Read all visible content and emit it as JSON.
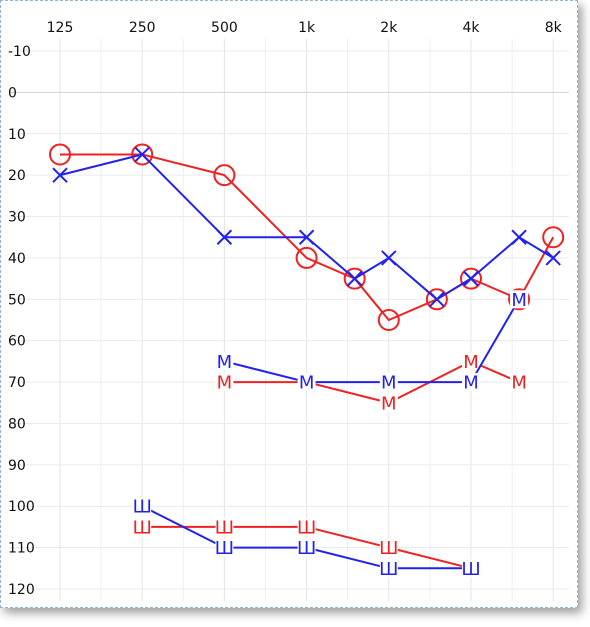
{
  "chart_data": {
    "type": "line",
    "title": "",
    "xlabel": "",
    "ylabel": "",
    "x_ticks": [
      "125",
      "250",
      "500",
      "1k",
      "2k",
      "4k",
      "8k"
    ],
    "y_ticks": [
      -10,
      0,
      10,
      20,
      30,
      40,
      50,
      60,
      70,
      80,
      90,
      100,
      110,
      120
    ],
    "ylim": [
      -10,
      120
    ],
    "y_inverted": true,
    "x_scale": "log-octave",
    "grid": true,
    "legend": "none",
    "series": [
      {
        "marker": "O",
        "color": "#ee2222",
        "points": [
          [
            "125",
            15
          ],
          [
            "250",
            15
          ],
          [
            "500",
            20
          ],
          [
            "1k",
            40
          ],
          [
            "1.5k",
            45
          ],
          [
            "2k",
            55
          ],
          [
            "3k",
            50
          ],
          [
            "4k",
            45
          ],
          [
            "6k",
            50
          ],
          [
            "8k",
            35
          ]
        ]
      },
      {
        "marker": "X",
        "color": "#2222ee",
        "points": [
          [
            "125",
            20
          ],
          [
            "250",
            15
          ],
          [
            "500",
            35
          ],
          [
            "1k",
            35
          ],
          [
            "1.5k",
            45
          ],
          [
            "2k",
            40
          ],
          [
            "3k",
            50
          ],
          [
            "4k",
            45
          ],
          [
            "6k",
            35
          ],
          [
            "8k",
            40
          ]
        ]
      },
      {
        "marker": "M",
        "color": "#ee2222",
        "points": [
          [
            "500",
            70
          ],
          [
            "1k",
            70
          ],
          [
            "2k",
            75
          ],
          [
            "4k",
            65
          ],
          [
            "6k",
            70
          ]
        ]
      },
      {
        "marker": "M",
        "color": "#2222ee",
        "points": [
          [
            "500",
            65
          ],
          [
            "1k",
            70
          ],
          [
            "2k",
            70
          ],
          [
            "4k",
            70
          ],
          [
            "6k",
            50
          ]
        ]
      },
      {
        "marker": "Ш",
        "color": "#ee2222",
        "points": [
          [
            "250",
            105
          ],
          [
            "500",
            105
          ],
          [
            "1k",
            105
          ],
          [
            "2k",
            110
          ],
          [
            "4k",
            115
          ]
        ]
      },
      {
        "marker": "Ш",
        "color": "#2222ee",
        "points": [
          [
            "250",
            100
          ],
          [
            "500",
            110
          ],
          [
            "1k",
            110
          ],
          [
            "2k",
            115
          ],
          [
            "4k",
            115
          ]
        ]
      }
    ]
  }
}
